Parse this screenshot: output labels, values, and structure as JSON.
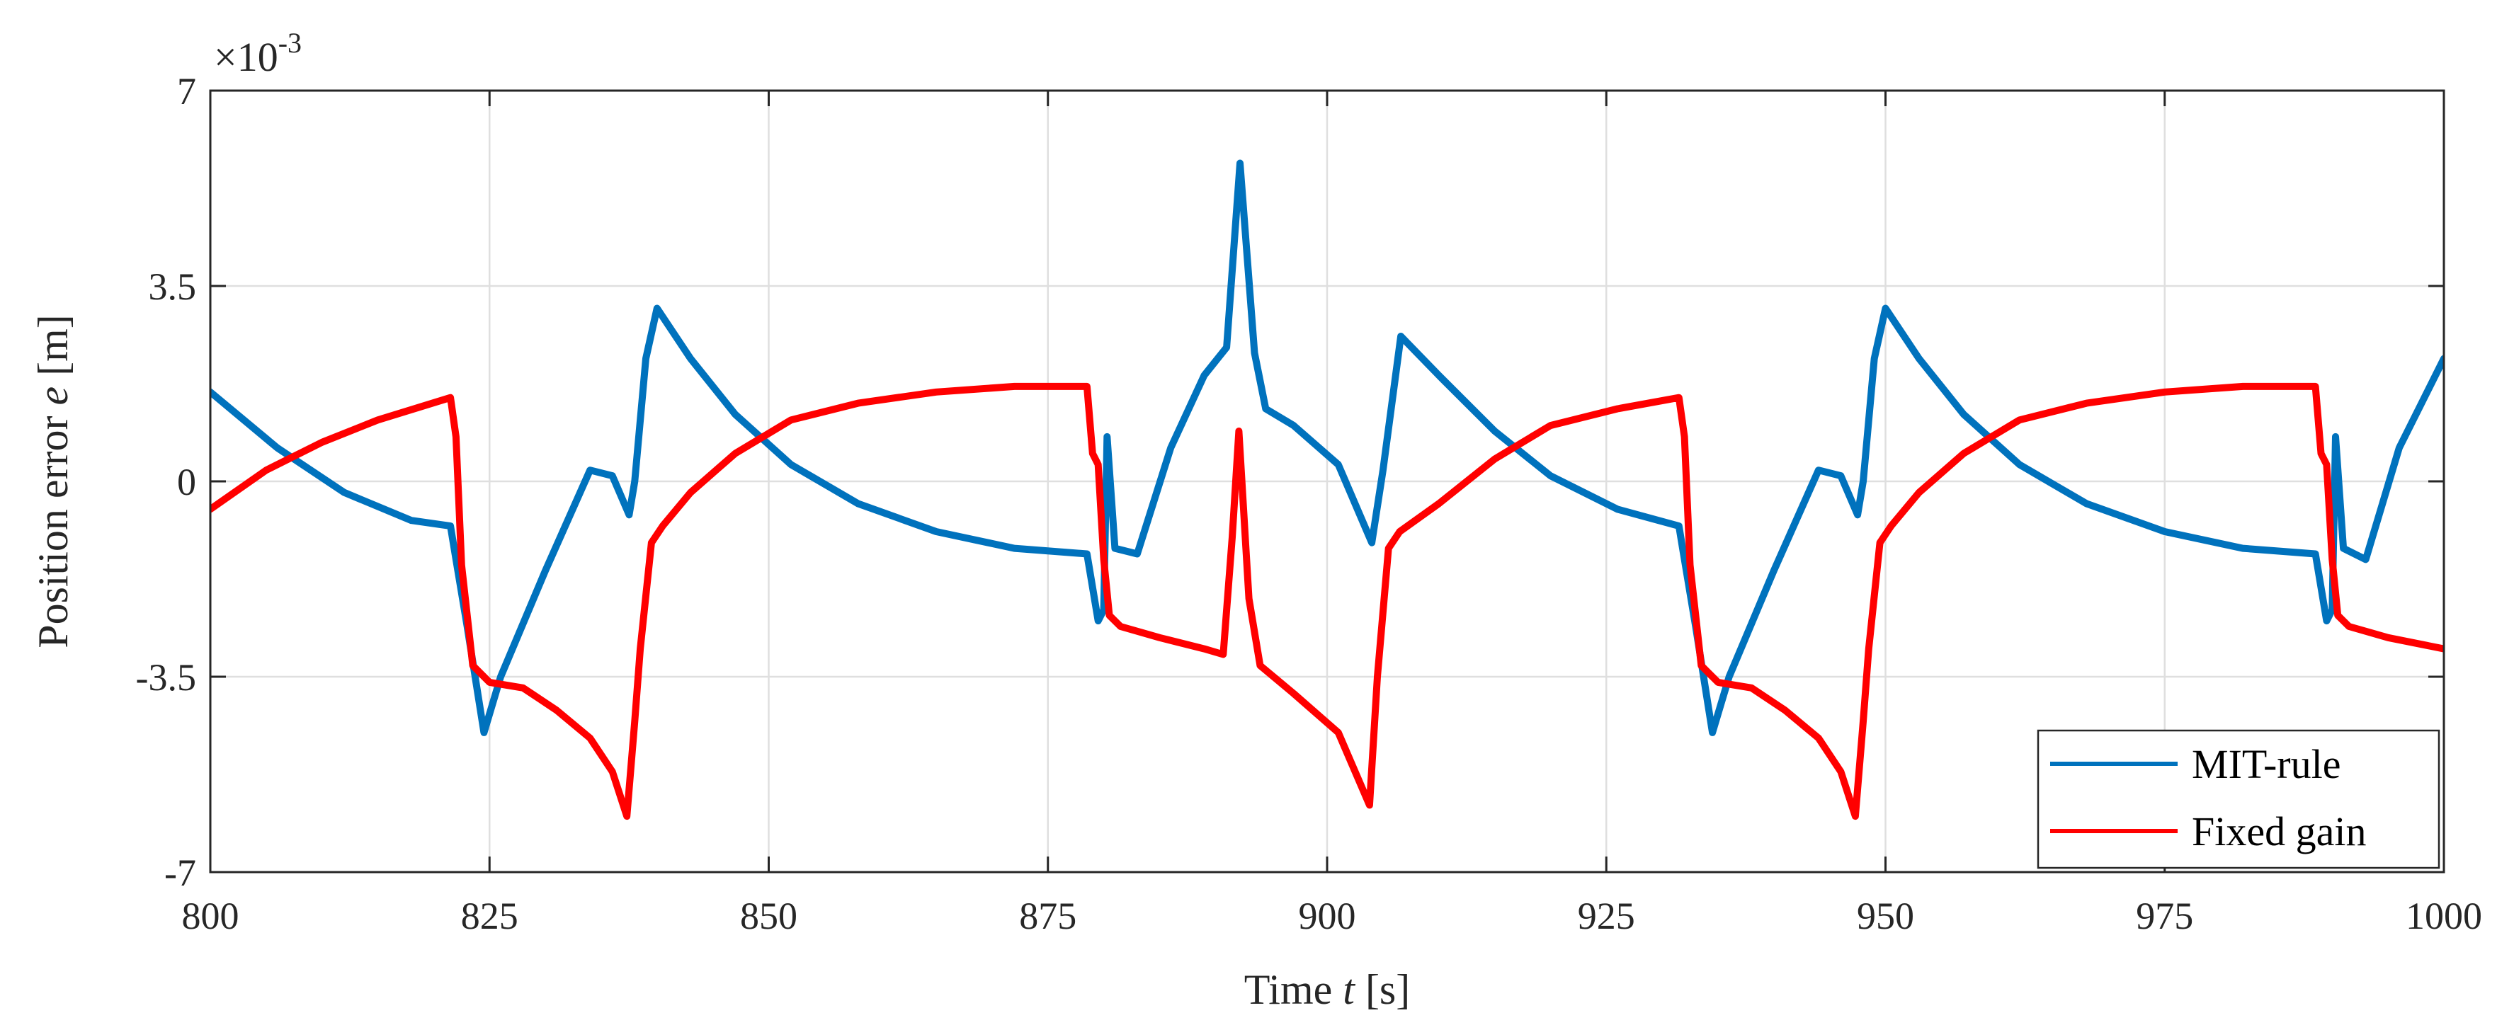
{
  "chart_data": {
    "type": "line",
    "title": "",
    "xlabel_prefix": "Time ",
    "xlabel_var": "t",
    "xlabel_suffix": " [s]",
    "ylabel_prefix": "Position error ",
    "ylabel_var": "e",
    "ylabel_suffix": " [m]",
    "xlim": [
      800,
      1000
    ],
    "ylim": [
      -7,
      7
    ],
    "x_ticks": [
      800,
      825,
      850,
      875,
      900,
      925,
      950,
      975,
      1000
    ],
    "x_tick_labels": [
      "800",
      "825",
      "850",
      "875",
      "900",
      "925",
      "950",
      "975",
      "1000"
    ],
    "y_ticks": [
      -7,
      -3.5,
      0,
      3.5,
      7
    ],
    "y_tick_labels": [
      "-7",
      "-3.5",
      "0",
      "3.5",
      "7"
    ],
    "y_multiplier_base": "×10",
    "y_multiplier_exp": "-3",
    "grid": true,
    "legend_position": "bottom-right",
    "series": [
      {
        "name": "MIT-rule",
        "color": "#0072BD",
        "x": [
          800,
          806,
          812,
          818,
          821.5,
          822,
          823,
          824.5,
          826,
          830,
          834,
          836,
          837.5,
          838,
          839,
          840,
          843,
          847,
          852,
          858,
          865,
          872,
          878.5,
          879.5,
          880,
          880.3,
          881,
          883,
          886,
          889,
          891,
          892.2,
          893.5,
          894.5,
          897,
          901,
          904,
          905,
          906.6,
          910,
          915,
          920,
          926,
          931.5,
          932,
          933,
          934.5,
          936,
          940,
          944,
          946,
          947.5,
          948,
          949,
          950,
          953,
          957,
          962,
          968,
          975,
          982,
          988.5,
          989.5,
          990,
          990.3,
          991,
          993,
          996,
          1000
        ],
        "y": [
          1.6,
          0.6,
          -0.2,
          -0.7,
          -0.8,
          -1.4,
          -2.6,
          -4.5,
          -3.5,
          -1.6,
          0.2,
          0.1,
          -0.6,
          0.0,
          2.2,
          3.1,
          2.2,
          1.2,
          0.3,
          -0.4,
          -0.9,
          -1.2,
          -1.3,
          -2.5,
          -2.3,
          0.8,
          -1.2,
          -1.3,
          0.6,
          1.9,
          2.4,
          5.7,
          2.3,
          1.3,
          1.0,
          0.3,
          -1.1,
          0.2,
          2.6,
          1.9,
          0.9,
          0.1,
          -0.5,
          -0.8,
          -1.4,
          -2.6,
          -4.5,
          -3.5,
          -1.6,
          0.2,
          0.1,
          -0.6,
          0.0,
          2.2,
          3.1,
          2.2,
          1.2,
          0.3,
          -0.4,
          -0.9,
          -1.2,
          -1.3,
          -2.5,
          -2.3,
          0.8,
          -1.2,
          -1.4,
          0.6,
          2.2
        ]
      },
      {
        "name": "Fixed gain",
        "color": "#FF0000",
        "x": [
          800,
          805,
          810,
          815,
          821.5,
          822,
          822.5,
          823.5,
          825,
          828,
          831,
          834,
          836,
          837.3,
          838,
          838.5,
          839.5,
          840.5,
          843,
          847,
          852,
          858,
          865,
          872,
          878.5,
          879,
          879.5,
          880,
          880.5,
          881.5,
          885,
          889,
          890.7,
          891.5,
          892.1,
          893,
          894,
          897,
          901,
          903.8,
          904.5,
          905.5,
          906.5,
          910,
          915,
          920,
          926,
          931.5,
          932,
          932.5,
          933.5,
          935,
          938,
          941,
          944,
          946,
          947.3,
          948,
          948.5,
          949.5,
          950.5,
          953,
          957,
          962,
          968,
          975,
          982,
          988.5,
          989,
          989.5,
          990,
          990.5,
          991.5,
          995,
          1000
        ],
        "y": [
          -0.5,
          0.2,
          0.7,
          1.1,
          1.5,
          0.8,
          -1.5,
          -3.3,
          -3.6,
          -3.7,
          -4.1,
          -4.6,
          -5.2,
          -6.0,
          -4.3,
          -3.0,
          -1.1,
          -0.8,
          -0.2,
          0.5,
          1.1,
          1.4,
          1.6,
          1.7,
          1.7,
          0.5,
          0.3,
          -1.4,
          -2.4,
          -2.6,
          -2.8,
          -3.0,
          -3.1,
          -1.0,
          0.9,
          -2.1,
          -3.3,
          -3.8,
          -4.5,
          -5.8,
          -3.5,
          -1.2,
          -0.9,
          -0.4,
          0.4,
          1.0,
          1.3,
          1.5,
          0.8,
          -1.5,
          -3.3,
          -3.6,
          -3.7,
          -4.1,
          -4.6,
          -5.2,
          -6.0,
          -4.3,
          -3.0,
          -1.1,
          -0.8,
          -0.2,
          0.5,
          1.1,
          1.4,
          1.6,
          1.7,
          1.7,
          0.5,
          0.3,
          -1.4,
          -2.4,
          -2.6,
          -2.8,
          -3.0
        ]
      }
    ]
  }
}
